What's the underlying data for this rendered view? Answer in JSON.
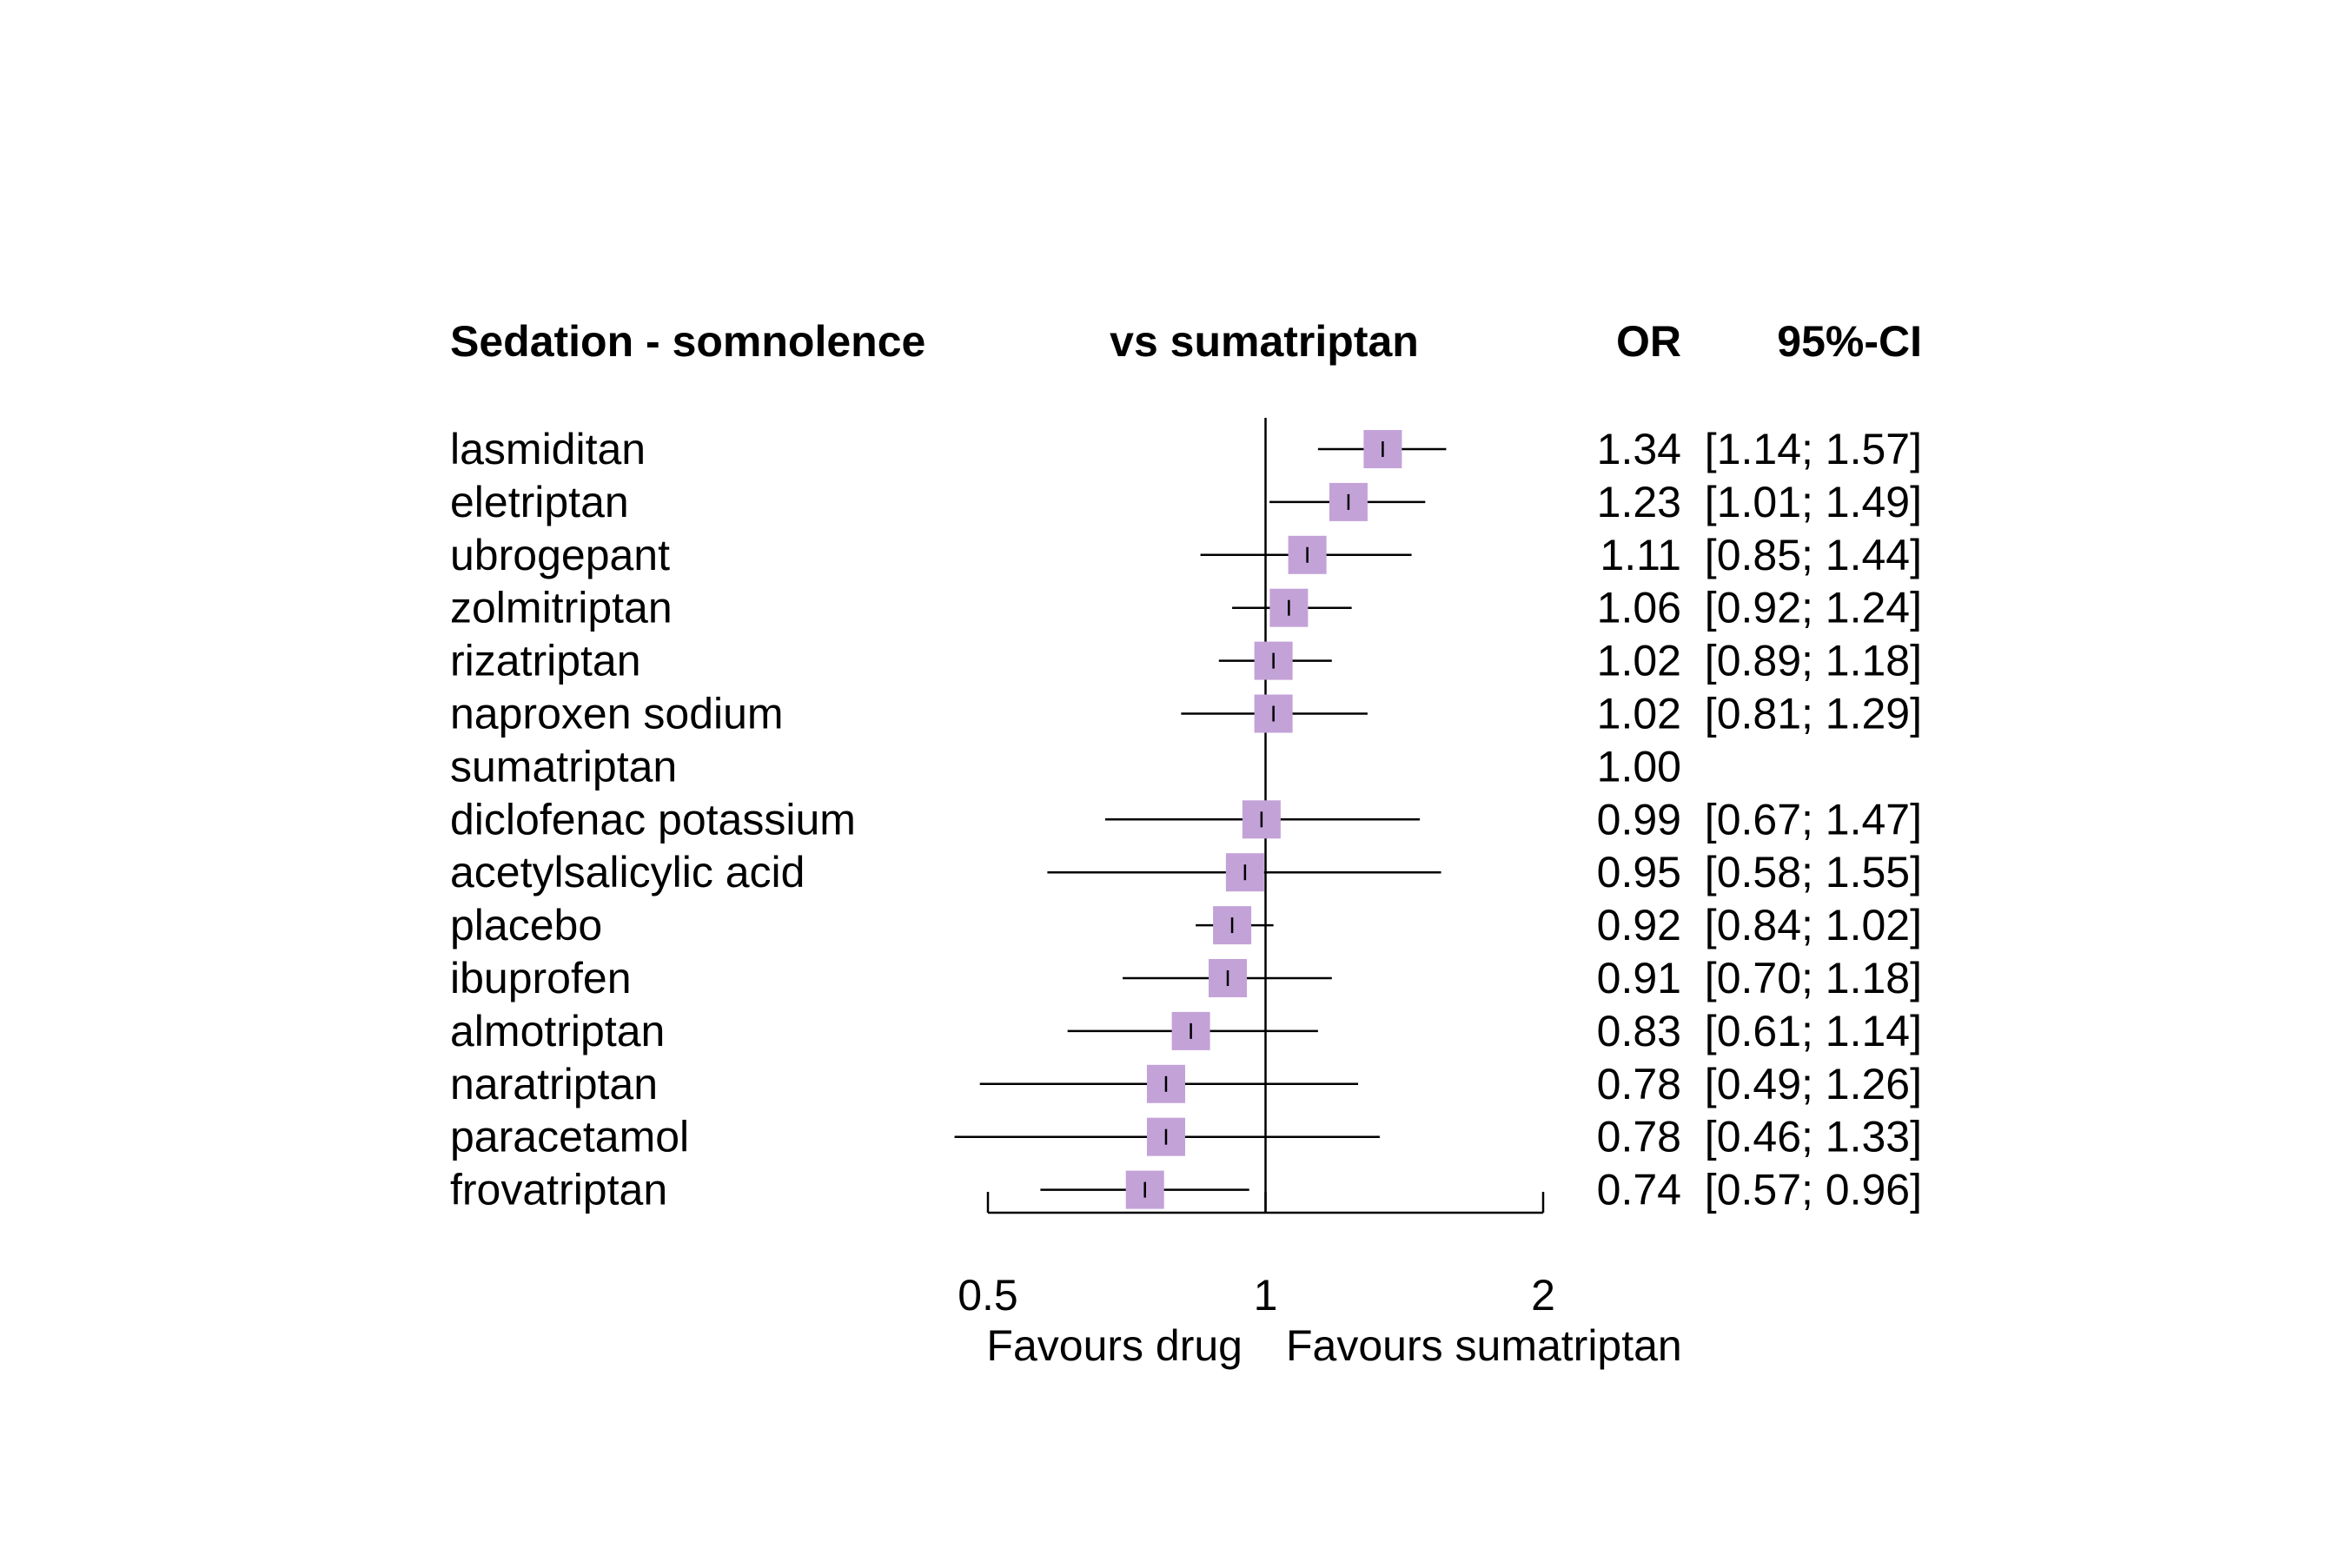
{
  "chart_data": {
    "type": "forest",
    "headers": {
      "outcome": "Sedation - somnolence",
      "comparison": "vs sumatriptan",
      "estimate": "OR",
      "ci": "95%-CI"
    },
    "scale": "log",
    "reference_value": 1,
    "xlim": [
      0.5,
      2
    ],
    "ticks": [
      0.5,
      1,
      2
    ],
    "tick_labels": [
      "0.5",
      "1",
      "2"
    ],
    "favours_left": "Favours drug",
    "favours_right": "Favours sumatriptan",
    "colors": {
      "box": "#c3a2d8",
      "line": "#000000"
    },
    "rows": [
      {
        "name": "lasmiditan",
        "or": 1.34,
        "lower": 1.14,
        "upper": 1.57,
        "or_text": "1.34",
        "ci_text": "[1.14; 1.57]",
        "weight": 1
      },
      {
        "name": "eletriptan",
        "or": 1.23,
        "lower": 1.01,
        "upper": 1.49,
        "or_text": "1.23",
        "ci_text": "[1.01; 1.49]",
        "weight": 1
      },
      {
        "name": "ubrogepant",
        "or": 1.11,
        "lower": 0.85,
        "upper": 1.44,
        "or_text": "1.11",
        "ci_text": "[0.85; 1.44]",
        "weight": 1
      },
      {
        "name": "zolmitriptan",
        "or": 1.06,
        "lower": 0.92,
        "upper": 1.24,
        "or_text": "1.06",
        "ci_text": "[0.92; 1.24]",
        "weight": 1
      },
      {
        "name": "rizatriptan",
        "or": 1.02,
        "lower": 0.89,
        "upper": 1.18,
        "or_text": "1.02",
        "ci_text": "[0.89; 1.18]",
        "weight": 1
      },
      {
        "name": "naproxen sodium",
        "or": 1.02,
        "lower": 0.81,
        "upper": 1.29,
        "or_text": "1.02",
        "ci_text": "[0.81; 1.29]",
        "weight": 1
      },
      {
        "name": "sumatriptan",
        "or": 1.0,
        "lower": null,
        "upper": null,
        "or_text": "1.00",
        "ci_text": "",
        "weight": 0
      },
      {
        "name": "diclofenac potassium",
        "or": 0.99,
        "lower": 0.67,
        "upper": 1.47,
        "or_text": "0.99",
        "ci_text": "[0.67; 1.47]",
        "weight": 1
      },
      {
        "name": "acetylsalicylic acid",
        "or": 0.95,
        "lower": 0.58,
        "upper": 1.55,
        "or_text": "0.95",
        "ci_text": "[0.58; 1.55]",
        "weight": 1
      },
      {
        "name": "placebo",
        "or": 0.92,
        "lower": 0.84,
        "upper": 1.02,
        "or_text": "0.92",
        "ci_text": "[0.84; 1.02]",
        "weight": 1
      },
      {
        "name": "ibuprofen",
        "or": 0.91,
        "lower": 0.7,
        "upper": 1.18,
        "or_text": "0.91",
        "ci_text": "[0.70; 1.18]",
        "weight": 1
      },
      {
        "name": "almotriptan",
        "or": 0.83,
        "lower": 0.61,
        "upper": 1.14,
        "or_text": "0.83",
        "ci_text": "[0.61; 1.14]",
        "weight": 1
      },
      {
        "name": "naratriptan",
        "or": 0.78,
        "lower": 0.49,
        "upper": 1.26,
        "or_text": "0.78",
        "ci_text": "[0.49; 1.26]",
        "weight": 1
      },
      {
        "name": "paracetamol",
        "or": 0.78,
        "lower": 0.46,
        "upper": 1.33,
        "or_text": "0.78",
        "ci_text": "[0.46; 1.33]",
        "weight": 1
      },
      {
        "name": "frovatriptan",
        "or": 0.74,
        "lower": 0.57,
        "upper": 0.96,
        "or_text": "0.74",
        "ci_text": "[0.57; 0.96]",
        "weight": 1
      }
    ]
  }
}
